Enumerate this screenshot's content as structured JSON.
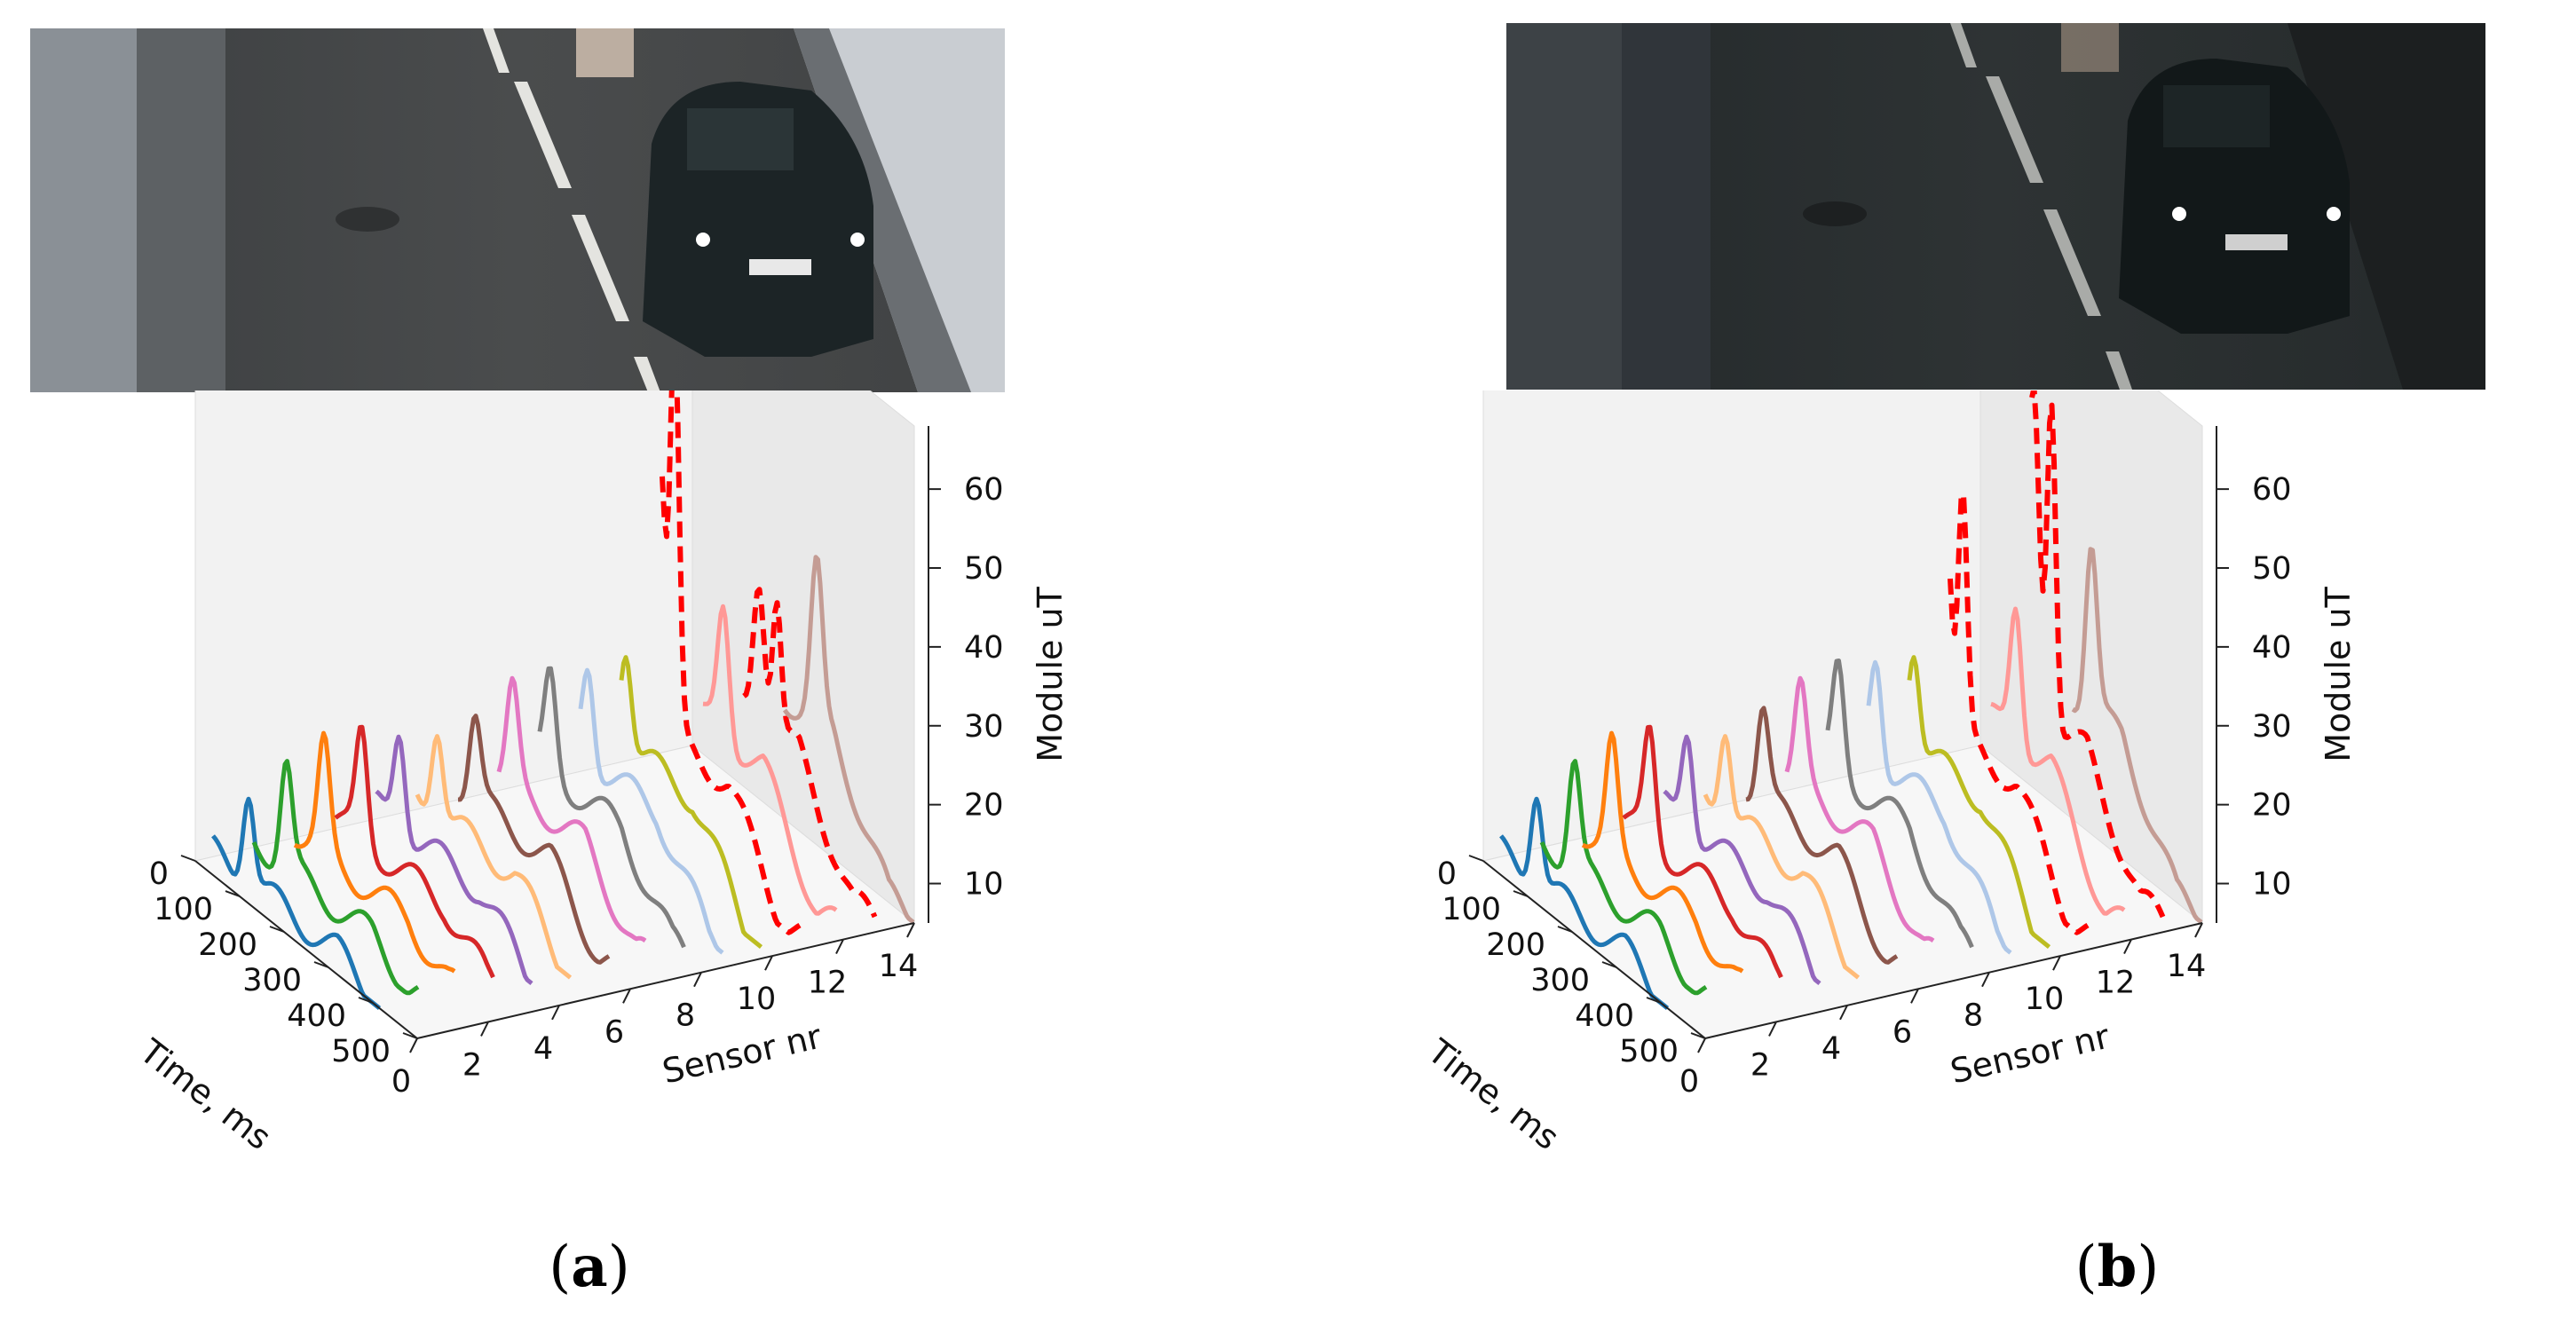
{
  "figure": {
    "panels": [
      {
        "label": "a",
        "photo": {
          "scene": "dark car driving on road past sensor strip, light snow on roadside",
          "lighting": "brighter"
        }
      },
      {
        "label": "b",
        "photo": {
          "scene": "dark car driving on road past sensor strip",
          "lighting": "darker"
        }
      }
    ],
    "caption_open": "(",
    "caption_close": ")"
  },
  "chart_data": [
    {
      "type": "line",
      "projection": "3d",
      "panel": "a",
      "xlabel": "Time, ms",
      "ylabel": "Sensor nr",
      "zlabel": "Module uT",
      "xticks": [
        0,
        100,
        200,
        300,
        400,
        500
      ],
      "yticks": [
        0,
        2,
        4,
        6,
        8,
        10,
        12,
        14
      ],
      "zticks": [
        10,
        20,
        30,
        40,
        50,
        60
      ],
      "xlim": [
        0,
        500
      ],
      "ylim": [
        0,
        14
      ],
      "zlim": [
        5,
        68
      ],
      "grid": false,
      "series_colors": [
        "#1f77b4",
        "#2ca02c",
        "#ff7f0e",
        "#d62728",
        "#9467bd",
        "#ffbb78",
        "#8c564b",
        "#e377c2",
        "#7f7f7f",
        "#aec7e8",
        "#bcbd22",
        "#ff0000",
        "#ff9896",
        "#ff0000",
        "#c49c94"
      ],
      "dashed_series": [
        11,
        13
      ],
      "series": [
        {
          "sensor": 0,
          "peak_ms": 120,
          "peak_uT": 20
        },
        {
          "sensor": 1,
          "peak_ms": 125,
          "peak_uT": 22
        },
        {
          "sensor": 2,
          "peak_ms": 130,
          "peak_uT": 23
        },
        {
          "sensor": 3,
          "peak_ms": 135,
          "peak_uT": 24
        },
        {
          "sensor": 4,
          "peak_ms": 140,
          "peak_uT": 24
        },
        {
          "sensor": 5,
          "peak_ms": 145,
          "peak_uT": 24
        },
        {
          "sensor": 6,
          "peak_ms": 150,
          "peak_uT": 24
        },
        {
          "sensor": 7,
          "peak_ms": 155,
          "peak_uT": 26
        },
        {
          "sensor": 8,
          "peak_ms": 160,
          "peak_uT": 27
        },
        {
          "sensor": 9,
          "peak_ms": 165,
          "peak_uT": 28
        },
        {
          "sensor": 10,
          "peak_ms": 170,
          "peak_uT": 30
        },
        {
          "sensor": 11,
          "peak_ms": 165,
          "peak_uT": 55,
          "second_peak_ms": 200,
          "second_peak_uT": 68
        },
        {
          "sensor": 12,
          "peak_ms": 230,
          "peak_uT": 35
        },
        {
          "sensor": 13,
          "peak_ms": 230,
          "peak_uT": 38,
          "second_peak_ms": 270,
          "second_peak_uT": 37
        },
        {
          "sensor": 14,
          "peak_ms": 280,
          "peak_uT": 40
        }
      ]
    },
    {
      "type": "line",
      "projection": "3d",
      "panel": "b",
      "xlabel": "Time, ms",
      "ylabel": "Sensor nr",
      "zlabel": "Module uT",
      "xticks": [
        0,
        100,
        200,
        300,
        400,
        500
      ],
      "yticks": [
        0,
        2,
        4,
        6,
        8,
        10,
        12,
        14
      ],
      "zticks": [
        10,
        20,
        30,
        40,
        50,
        60
      ],
      "xlim": [
        0,
        500
      ],
      "ylim": [
        0,
        14
      ],
      "zlim": [
        5,
        68
      ],
      "grid": false,
      "series_colors": [
        "#1f77b4",
        "#2ca02c",
        "#ff7f0e",
        "#d62728",
        "#9467bd",
        "#ffbb78",
        "#8c564b",
        "#e377c2",
        "#7f7f7f",
        "#aec7e8",
        "#bcbd22",
        "#ff0000",
        "#ff9896",
        "#ff0000",
        "#c49c94"
      ],
      "dashed_series": [
        11,
        13
      ],
      "series": [
        {
          "sensor": 0,
          "peak_ms": 120,
          "peak_uT": 20
        },
        {
          "sensor": 1,
          "peak_ms": 125,
          "peak_uT": 22
        },
        {
          "sensor": 2,
          "peak_ms": 130,
          "peak_uT": 23
        },
        {
          "sensor": 3,
          "peak_ms": 135,
          "peak_uT": 24
        },
        {
          "sensor": 4,
          "peak_ms": 140,
          "peak_uT": 24
        },
        {
          "sensor": 5,
          "peak_ms": 145,
          "peak_uT": 24
        },
        {
          "sensor": 6,
          "peak_ms": 150,
          "peak_uT": 25
        },
        {
          "sensor": 7,
          "peak_ms": 155,
          "peak_uT": 26
        },
        {
          "sensor": 8,
          "peak_ms": 160,
          "peak_uT": 28
        },
        {
          "sensor": 9,
          "peak_ms": 165,
          "peak_uT": 29
        },
        {
          "sensor": 10,
          "peak_ms": 170,
          "peak_uT": 30
        },
        {
          "sensor": 11,
          "peak_ms": 160,
          "peak_uT": 48,
          "second_peak_ms": 200,
          "second_peak_uT": 48
        },
        {
          "sensor": 12,
          "peak_ms": 240,
          "peak_uT": 36
        },
        {
          "sensor": 13,
          "peak_ms": 200,
          "peak_uT": 60,
          "second_peak_ms": 240,
          "second_peak_uT": 62
        },
        {
          "sensor": 14,
          "peak_ms": 250,
          "peak_uT": 42
        }
      ]
    }
  ]
}
